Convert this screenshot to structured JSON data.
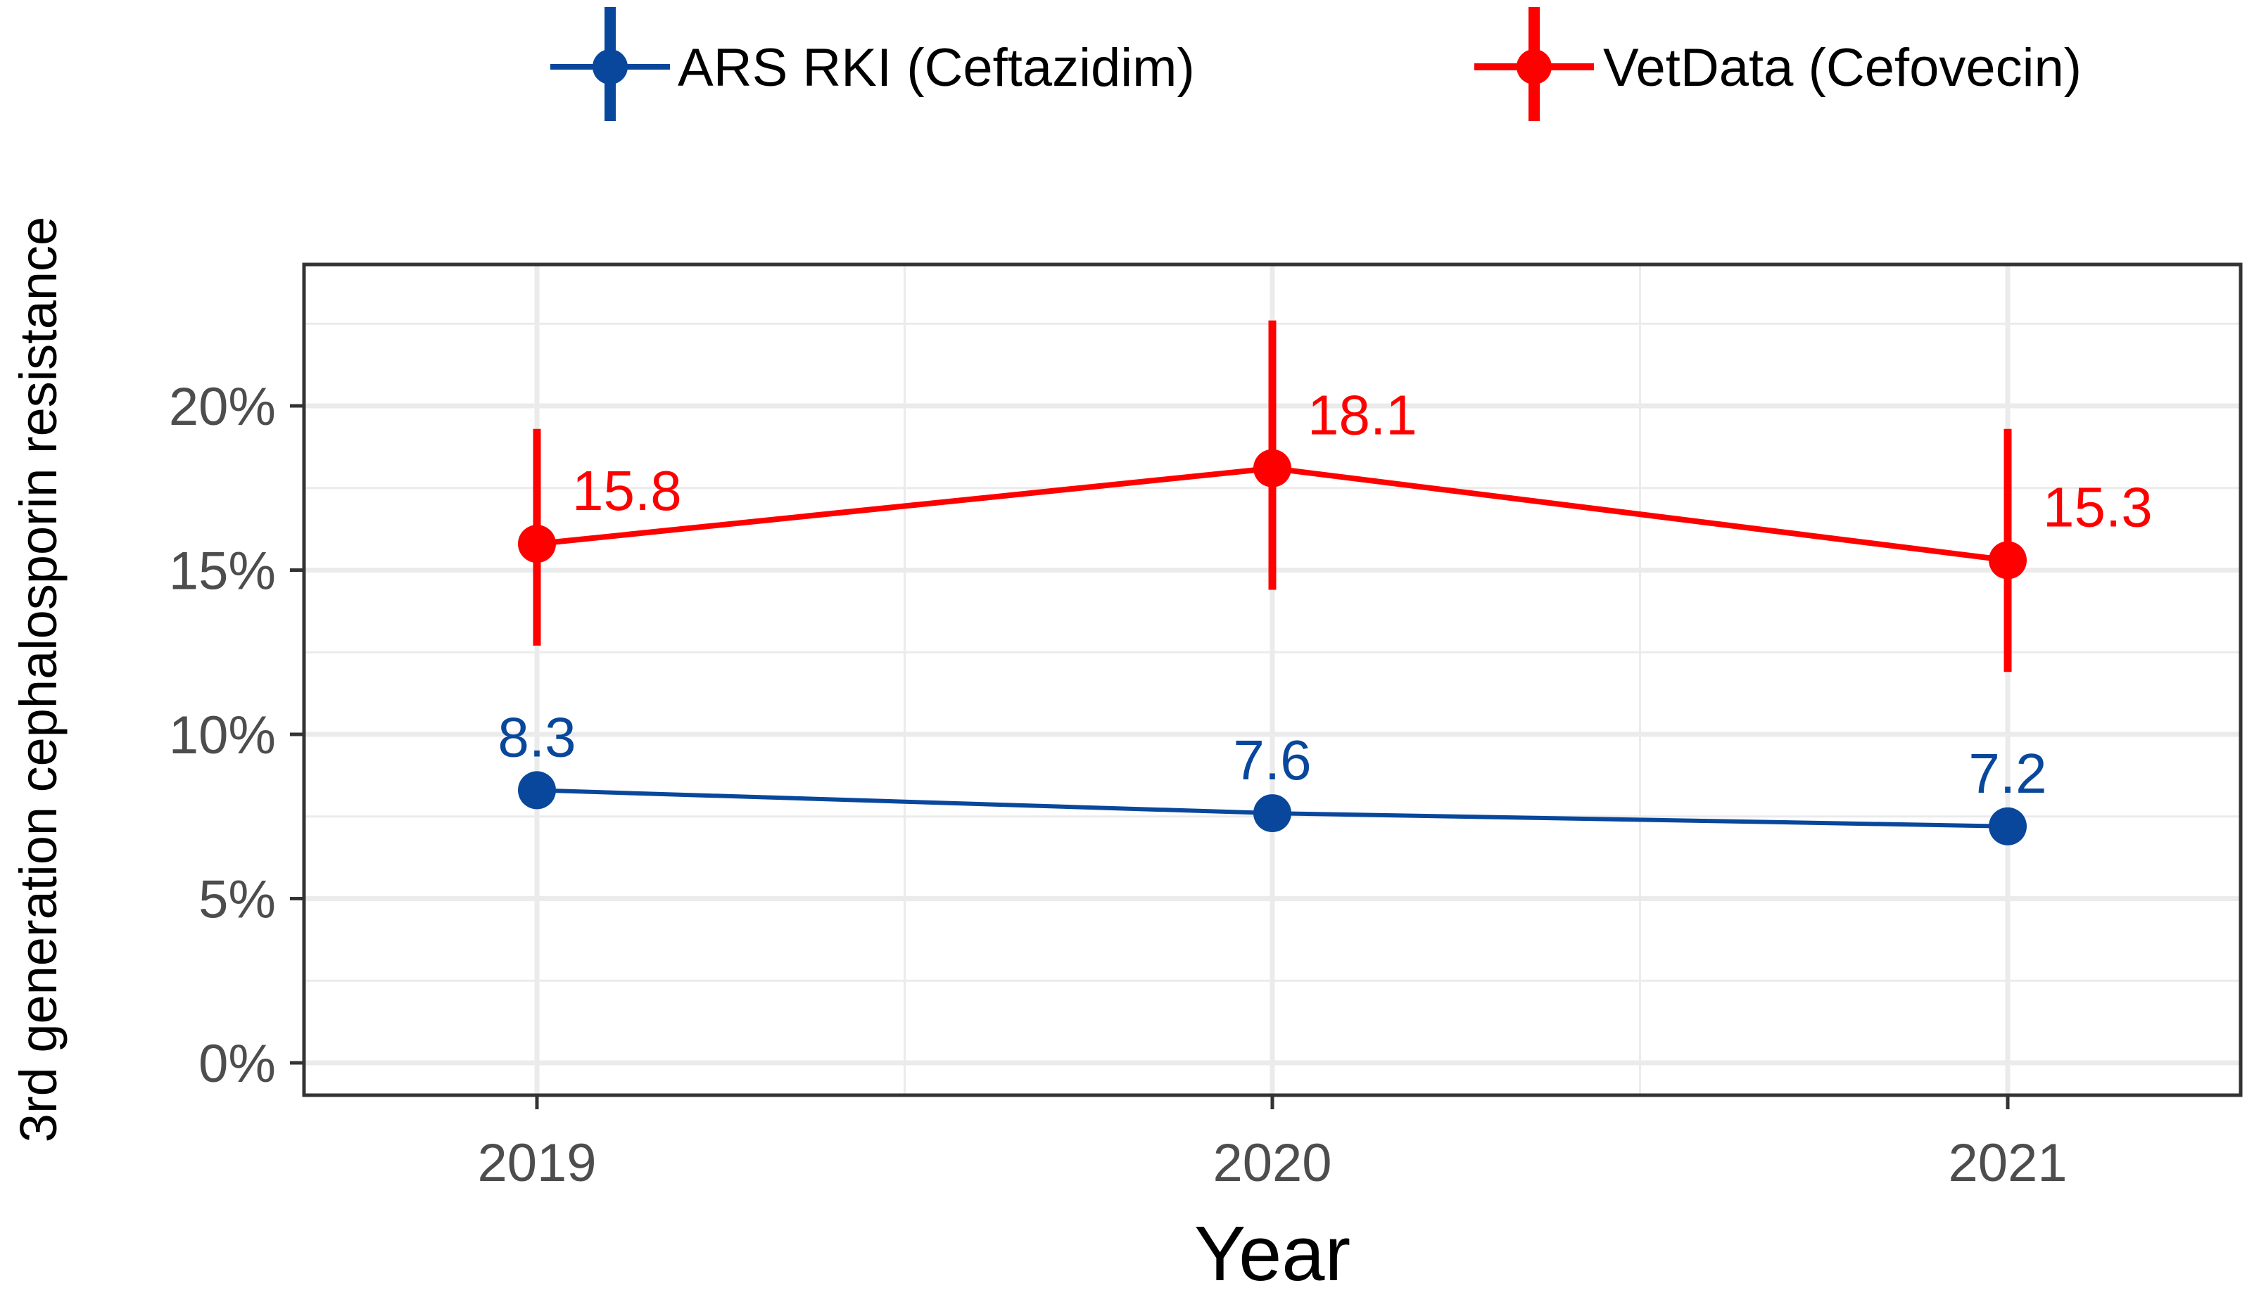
{
  "chart_data": {
    "type": "line",
    "title": "",
    "xlabel": "Year",
    "ylabel": "3rd generation cephalosporin resistance",
    "categories": [
      "2019",
      "2020",
      "2021"
    ],
    "ylim": [
      0,
      25
    ],
    "yticks": [
      0,
      5,
      10,
      15,
      20
    ],
    "ytick_labels": [
      "0%",
      "5%",
      "10%",
      "15%",
      "20%"
    ],
    "grid": true,
    "legend_position": "top",
    "series": [
      {
        "name": "ARS RKI (Ceftazidim)",
        "color": "#08479b",
        "values": [
          8.3,
          7.6,
          7.2
        ],
        "labels": [
          "8.3",
          "7.6",
          "7.2"
        ],
        "error_low": [
          8.3,
          7.6,
          7.2
        ],
        "error_high": [
          8.3,
          7.6,
          7.2
        ]
      },
      {
        "name": "VetData (Cefovecin)",
        "color": "#ff0000",
        "values": [
          15.8,
          18.1,
          15.3
        ],
        "labels": [
          "15.8",
          "18.1",
          "15.3"
        ],
        "error_low": [
          12.7,
          14.4,
          11.9
        ],
        "error_high": [
          19.3,
          22.6,
          19.3
        ]
      }
    ]
  }
}
